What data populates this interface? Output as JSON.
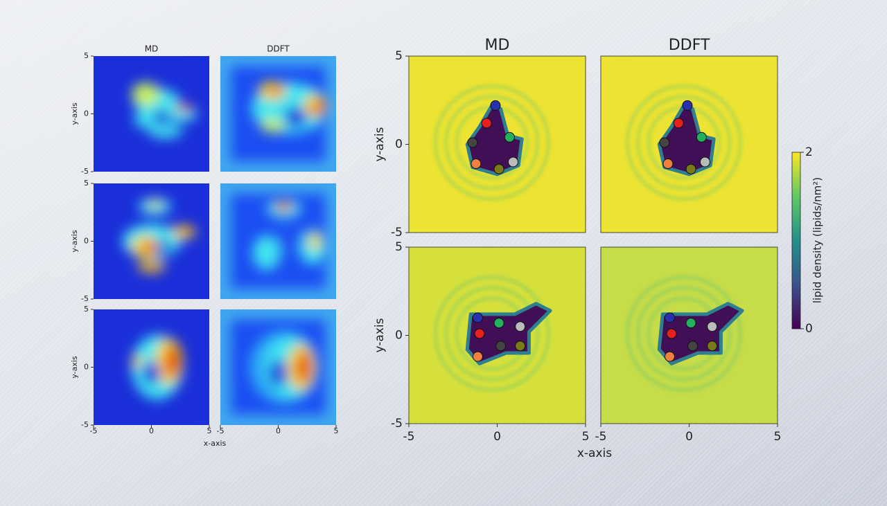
{
  "left": {
    "column_titles": [
      "MD",
      "DDFT"
    ],
    "y_label": "y-axis",
    "x_label": "x-axis",
    "ticks": [
      -5,
      0,
      5
    ]
  },
  "right": {
    "column_titles": [
      "MD",
      "DDFT"
    ],
    "y_label": "y-axis",
    "x_label": "x-axis",
    "ticks": [
      -5,
      0,
      5
    ]
  },
  "colorbar": {
    "label": "lipid density (lipids/nm²)",
    "ticks": [
      0,
      2
    ]
  }
}
